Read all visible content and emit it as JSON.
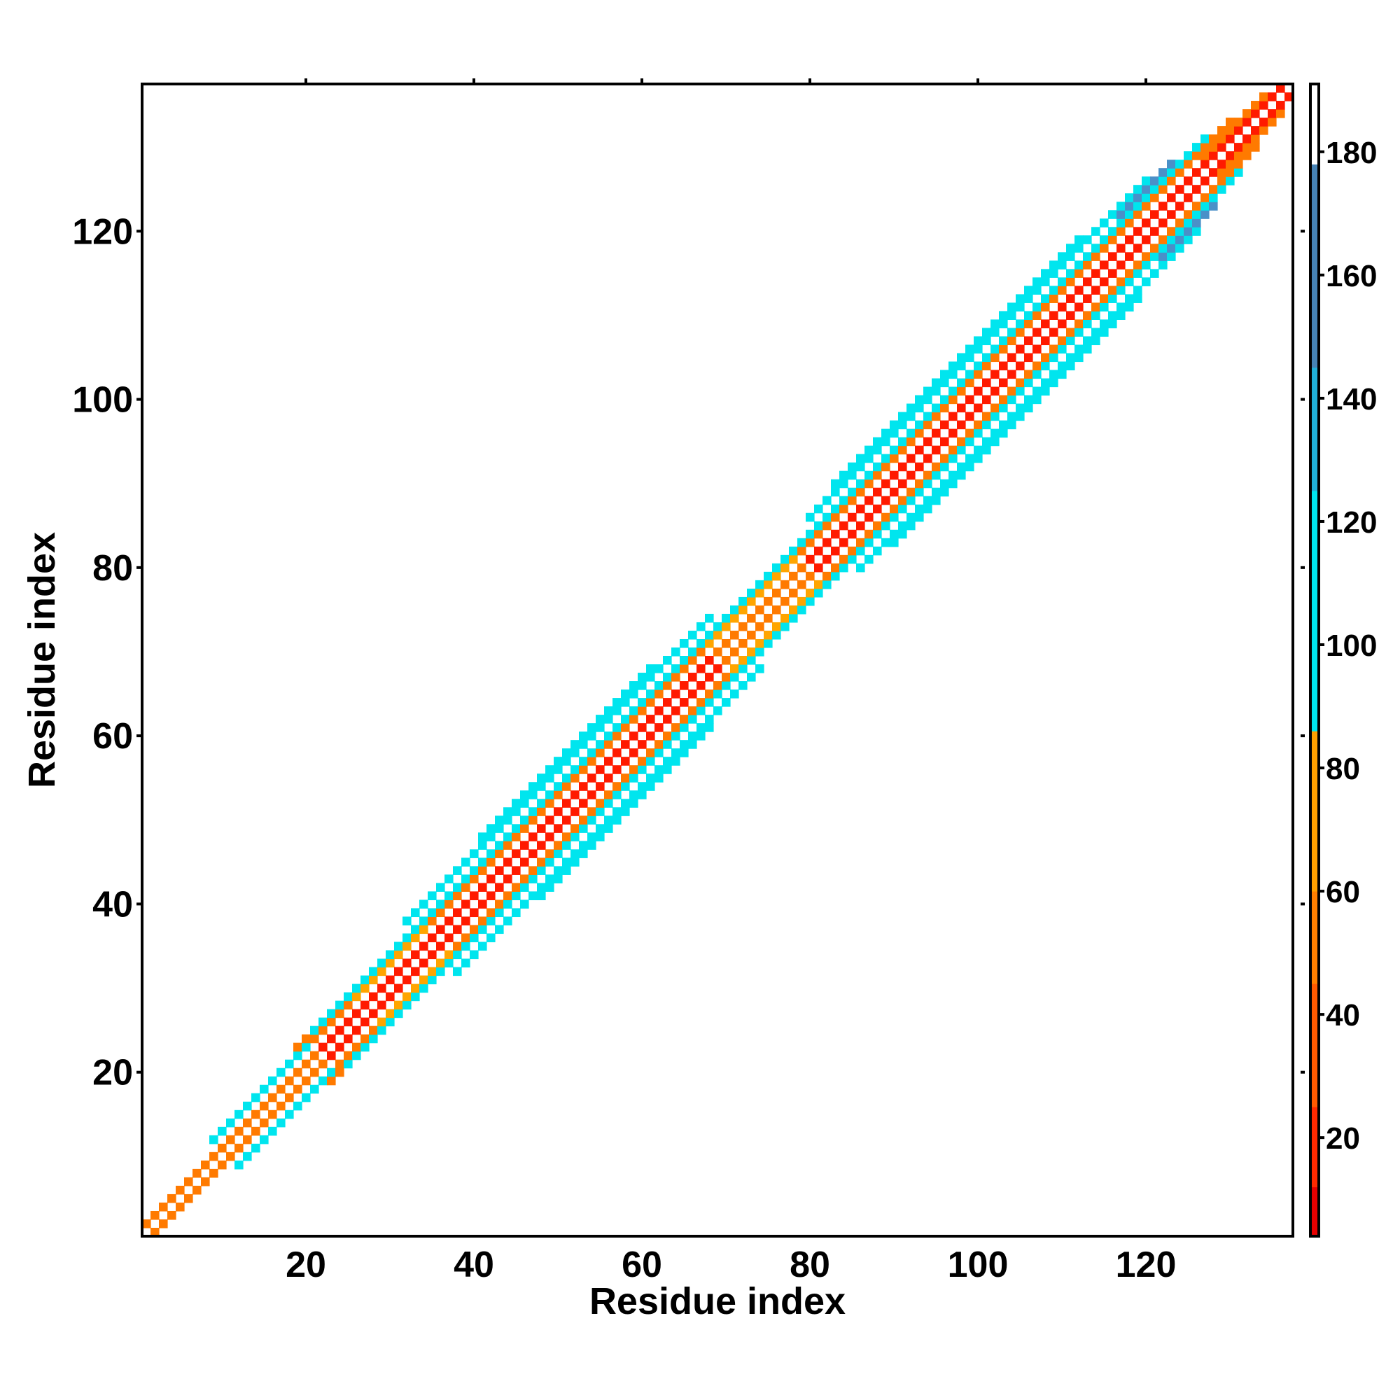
{
  "chart_data": {
    "type": "heatmap",
    "title": "",
    "xlabel": "Residue index",
    "ylabel": "Residue index",
    "xlim": [
      1,
      137
    ],
    "ylim": [
      1,
      137
    ],
    "x_ticks": [
      20,
      40,
      60,
      80,
      100,
      120
    ],
    "y_ticks": [
      20,
      40,
      60,
      80,
      100,
      120
    ],
    "colorbar": {
      "range": [
        4,
        191
      ],
      "ticks": [
        20,
        40,
        60,
        80,
        100,
        120,
        140,
        160,
        180
      ],
      "segments": [
        {
          "from": 4,
          "to": 12,
          "color": "#e60000"
        },
        {
          "from": 12,
          "to": 25,
          "color": "#ff2a00"
        },
        {
          "from": 25,
          "to": 45,
          "color": "#ff5a00"
        },
        {
          "from": 45,
          "to": 60,
          "color": "#ff7f00"
        },
        {
          "from": 60,
          "to": 86,
          "color": "#ffa000"
        },
        {
          "from": 86,
          "to": 125,
          "color": "#00e5ee"
        },
        {
          "from": 125,
          "to": 145,
          "color": "#21b0d8"
        },
        {
          "from": 145,
          "to": 178,
          "color": "#4682b4"
        },
        {
          "from": 178,
          "to": 191,
          "color": "#ffffff"
        }
      ]
    },
    "color_classes": {
      "white": "#ffffff",
      "red": "#ff1a00",
      "orange": "#ff7a00",
      "amber": "#ffa500",
      "cyan": "#00e5ee",
      "steelblue": "#4a90c8"
    },
    "band": {
      "description_free": true,
      "half_width": [
        [
          1,
          2
        ],
        [
          20,
          3
        ],
        [
          22,
          4
        ],
        [
          30,
          5
        ],
        [
          40,
          6
        ],
        [
          50,
          7
        ],
        [
          60,
          7
        ],
        [
          70,
          6
        ],
        [
          74,
          4
        ],
        [
          78,
          4
        ],
        [
          84,
          6
        ],
        [
          90,
          7
        ],
        [
          110,
          7
        ],
        [
          122,
          6
        ],
        [
          128,
          4
        ],
        [
          134,
          2
        ],
        [
          137,
          1
        ]
      ],
      "offset_classes": {
        "0": "white",
        "1": "red",
        "2": "white",
        "3": "orange",
        "4": "cyan",
        "5": "white",
        "6": "cyan",
        "7": "cyan"
      },
      "segment_overrides": [
        {
          "from": 1,
          "to": 22,
          "class_map": {
            "1": "orange",
            "3": "cyan",
            "4": "orange"
          }
        },
        {
          "from": 28,
          "to": 36,
          "class_map": {
            "3": "amber"
          }
        },
        {
          "from": 70,
          "to": 80,
          "class_map": {
            "1": "orange",
            "3": "amber"
          }
        },
        {
          "from": 120,
          "to": 126,
          "class_map": {
            "5": "steelblue"
          }
        },
        {
          "from": 128,
          "to": 137,
          "class_map": {
            "1": "red",
            "2": "orange"
          }
        }
      ]
    }
  }
}
